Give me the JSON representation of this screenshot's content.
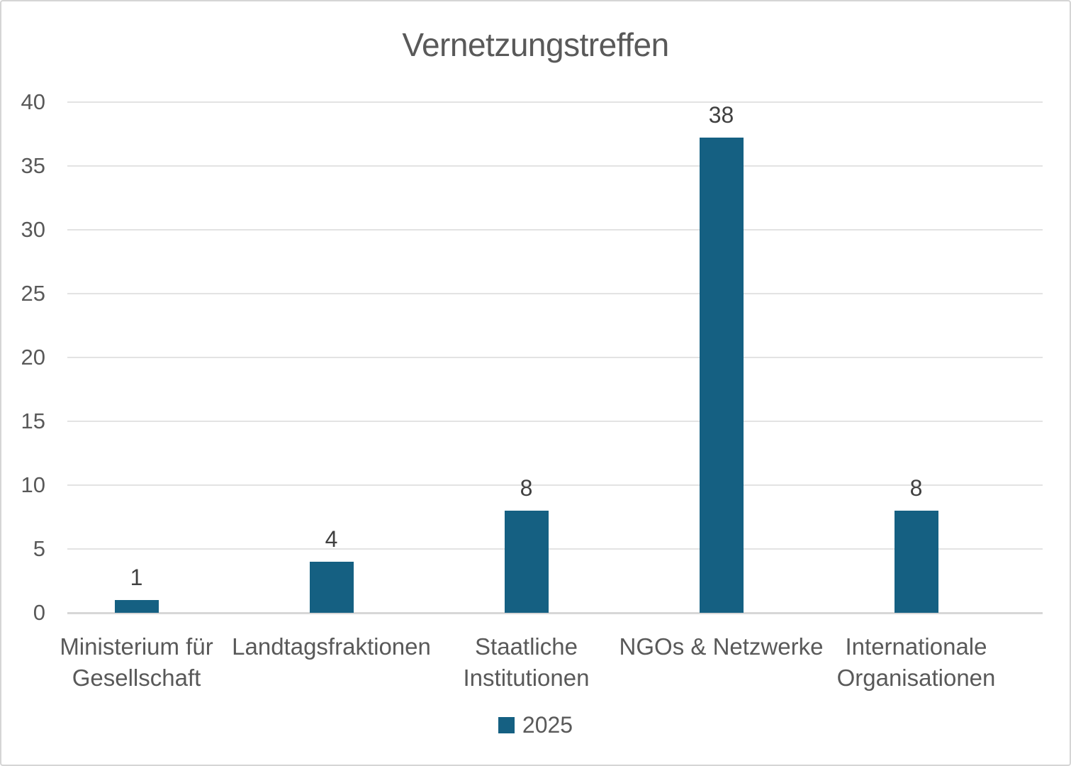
{
  "chart_data": {
    "type": "bar",
    "title": "Vernetzungstreffen",
    "categories": [
      "Ministerium für Gesellschaft",
      "Landtagsfraktionen",
      "Staatliche Institutionen",
      "NGOs & Netzwerke",
      "Internationale Organisationen"
    ],
    "category_lines": [
      [
        "Ministerium für",
        "Gesellschaft"
      ],
      [
        "Landtagsfraktionen"
      ],
      [
        "Staatliche",
        "Institutionen"
      ],
      [
        "NGOs & Netzwerke"
      ],
      [
        "Internationale",
        "Organisationen"
      ]
    ],
    "series": [
      {
        "name": "2025",
        "values": [
          1,
          4,
          8,
          38,
          8
        ]
      }
    ],
    "value_labels": [
      "1",
      "4",
      "8",
      "38",
      "8"
    ],
    "xlabel": "",
    "ylabel": "",
    "ylim": [
      0,
      40
    ],
    "y_ticks": [
      0,
      5,
      10,
      15,
      20,
      25,
      30,
      35,
      40
    ],
    "grid": true,
    "legend_position": "bottom",
    "colors": {
      "bar": "#156082",
      "title_text": "#595959",
      "axis_text": "#595959",
      "data_label_text": "#404040",
      "gridline": "#E3E3E3",
      "axis_line": "#D7D7D7",
      "frame_border": "#D5D5D5",
      "background": "#FFFFFF"
    }
  }
}
